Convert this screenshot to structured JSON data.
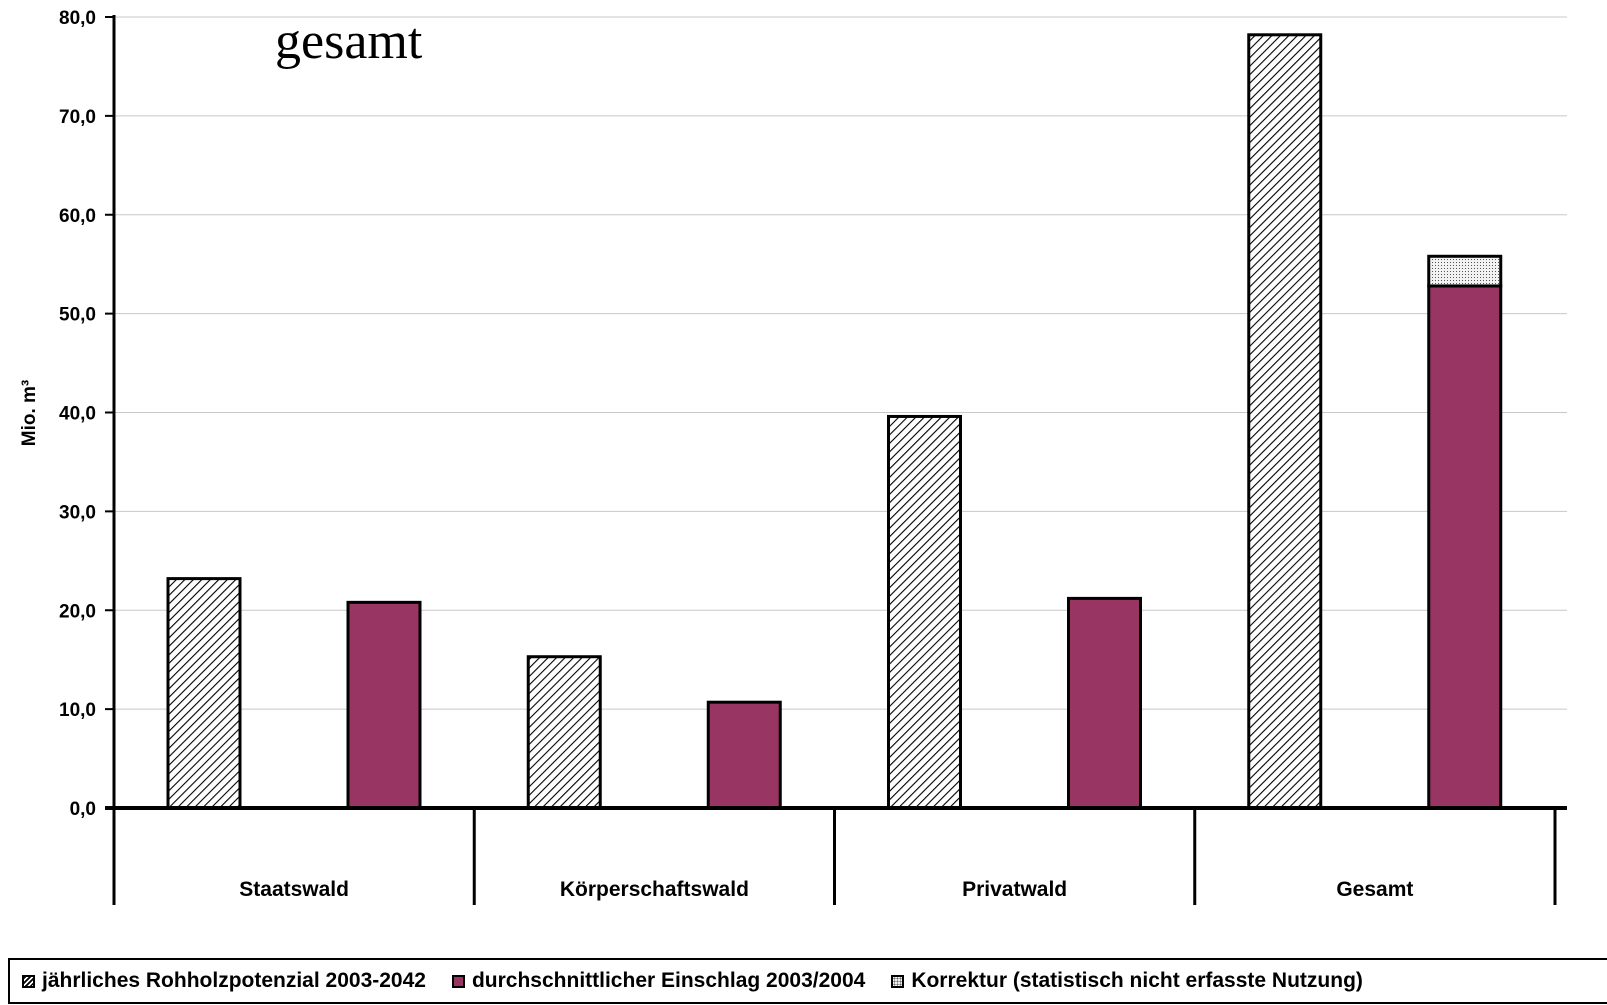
{
  "chart_data": {
    "type": "bar",
    "title": "gesamt",
    "ylabel": "Mio. m³",
    "xlabel": "",
    "ylim": [
      0,
      80
    ],
    "yticks": [
      0,
      10,
      20,
      30,
      40,
      50,
      60,
      70,
      80
    ],
    "ytick_labels": [
      "0,0",
      "10,0",
      "20,0",
      "30,0",
      "40,0",
      "50,0",
      "60,0",
      "70,0",
      "80,0"
    ],
    "categories": [
      "Staatswald",
      "Körperschaftswald",
      "Privatwald",
      "Gesamt"
    ],
    "series": [
      {
        "name": "jährliches Rohholzpotenzial 2003-2042",
        "values": [
          23.2,
          15.3,
          39.6,
          78.2
        ],
        "color": "#000000",
        "pattern": "hatch"
      },
      {
        "name": "durchschnittlicher Einschlag 2003/2004",
        "values": [
          20.8,
          10.7,
          21.2,
          52.8
        ],
        "color": "#983563",
        "pattern": "solid"
      },
      {
        "name": "Korrektur (statistisch nicht erfasste Nutzung)",
        "values": [
          0,
          0,
          0,
          3.0
        ],
        "color": "#eeeeee",
        "pattern": "dotted",
        "stacked_on": "durchschnittlicher Einschlag 2003/2004"
      }
    ],
    "grid": true,
    "legend_position": "bottom"
  }
}
